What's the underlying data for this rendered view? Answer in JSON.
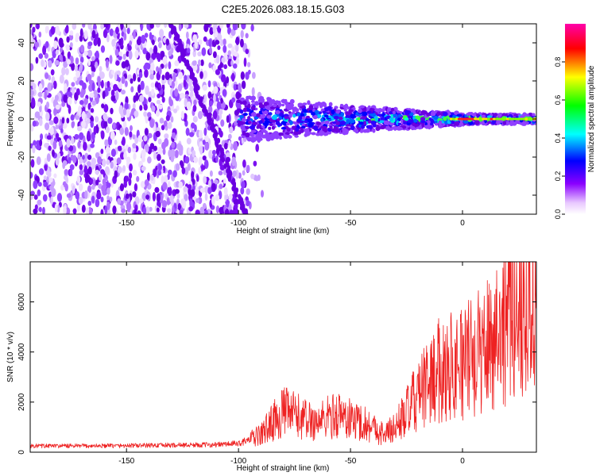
{
  "figure_title": "C2E5.2026.083.18.15.G03",
  "chart_data": [
    {
      "type": "heatmap",
      "title": "C2E5.2026.083.18.15.G03",
      "xlabel": "Height of straight line (km)",
      "ylabel": "Frequency (Hz)",
      "xlim": [
        -193,
        33
      ],
      "ylim": [
        -50,
        50
      ],
      "x_ticks": [
        -150,
        -100,
        -50,
        0
      ],
      "y_ticks": [
        -40,
        -20,
        0,
        20,
        40
      ],
      "colorbar": {
        "label": "Normalized spectral amplitude",
        "range": [
          0,
          1
        ],
        "ticks": [
          0.0,
          0.2,
          0.4,
          0.6,
          0.8
        ],
        "colors": [
          "#ffffff",
          "#8a00ff",
          "#0000ff",
          "#00ffff",
          "#00ff00",
          "#ffff00",
          "#ff0000",
          "#ff00aa"
        ]
      },
      "features": {
        "noise_region_x": [
          -193,
          -90
        ],
        "signal_region_x": [
          -100,
          33
        ],
        "carrier_frequency_hz": 0,
        "diagonal_trace_x": [
          -130,
          -97
        ],
        "diagonal_trace_y": [
          50,
          -50
        ]
      }
    },
    {
      "type": "line",
      "xlabel": "Height of straight line (km)",
      "ylabel": "SNR (10 * v/v)",
      "xlim": [
        -193,
        33
      ],
      "ylim": [
        0,
        7600
      ],
      "x_ticks": [
        -150,
        -100,
        -50,
        0
      ],
      "y_ticks": [
        0,
        2000,
        4000,
        6000
      ],
      "line_color": "#ee2222",
      "series": [
        {
          "name": "SNR",
          "x": [
            -193,
            -170,
            -150,
            -130,
            -110,
            -100,
            -95,
            -90,
            -85,
            -80,
            -75,
            -70,
            -65,
            -60,
            -55,
            -50,
            -45,
            -40,
            -35,
            -30,
            -25,
            -20,
            -15,
            -10,
            -5,
            0,
            5,
            8,
            10,
            15,
            20,
            25,
            30,
            33
          ],
          "values": [
            250,
            250,
            260,
            280,
            300,
            350,
            500,
            700,
            1200,
            1600,
            1500,
            1300,
            1200,
            1400,
            1500,
            1300,
            1200,
            1000,
            700,
            1000,
            1600,
            2200,
            2800,
            3300,
            3500,
            3600,
            3800,
            4000,
            4200,
            4800,
            5300,
            5800,
            6100,
            6300
          ]
        }
      ]
    }
  ]
}
